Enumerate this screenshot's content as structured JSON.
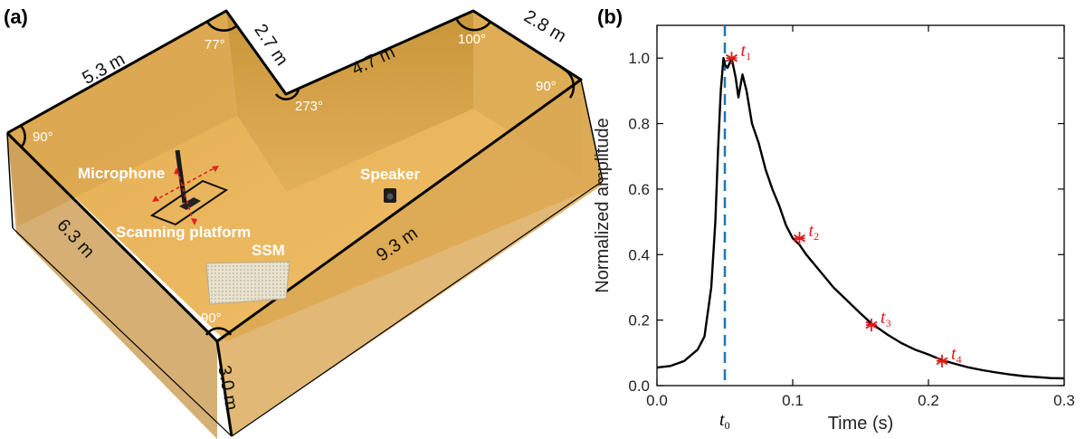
{
  "panel_a": {
    "label": "(a)",
    "dimensions": [
      "5.3 m",
      "2.7 m",
      "4.7 m",
      "2.8 m",
      "6.3 m",
      "9.3 m",
      "3.0 m"
    ],
    "angles": [
      "77°",
      "100°",
      "90°",
      "273°",
      "90°",
      "90°"
    ],
    "objects": {
      "microphone": "Microphone",
      "scanning_platform": "Scanning platform",
      "speaker": "Speaker",
      "ssm": "SSM"
    },
    "colors": {
      "wall": "#d7a64a",
      "floor": "#ecb85f",
      "edge": "#000000",
      "arrow": "#e02020"
    }
  },
  "panel_b": {
    "label": "(b)",
    "t0_label": "t",
    "t0_sub": "0",
    "marker_label": "t",
    "colors": {
      "curve": "#000000",
      "marker": "#e01b1b",
      "dashed": "#1f77b4"
    }
  },
  "chart_data": {
    "type": "line",
    "title": "",
    "xlabel": "Time (s)",
    "ylabel": "Normalized amplitude",
    "xlim": [
      0.0,
      0.3
    ],
    "ylim": [
      0.0,
      1.1
    ],
    "xticks": [
      0.0,
      0.1,
      0.2,
      0.3
    ],
    "xtick_labels": [
      "0.0",
      "0.1",
      "0.2",
      "0.3"
    ],
    "yticks": [
      0.0,
      0.2,
      0.4,
      0.6,
      0.8,
      1.0
    ],
    "ytick_labels": [
      "0.0",
      "0.2",
      "0.4",
      "0.6",
      "0.8",
      "1.0"
    ],
    "t0": 0.05,
    "grid": false,
    "series": [
      {
        "x": [
          0.0,
          0.01,
          0.02,
          0.03,
          0.035,
          0.04,
          0.043,
          0.045,
          0.047,
          0.049,
          0.05,
          0.052,
          0.055,
          0.058,
          0.06,
          0.063,
          0.066,
          0.07,
          0.075,
          0.08,
          0.085,
          0.09,
          0.095,
          0.1,
          0.105,
          0.11,
          0.12,
          0.13,
          0.14,
          0.15,
          0.158,
          0.17,
          0.18,
          0.19,
          0.2,
          0.21,
          0.22,
          0.23,
          0.24,
          0.25,
          0.26,
          0.27,
          0.28,
          0.29,
          0.3
        ],
        "y": [
          0.055,
          0.06,
          0.075,
          0.11,
          0.15,
          0.3,
          0.5,
          0.72,
          0.9,
          1.0,
          0.98,
          0.97,
          1.0,
          0.94,
          0.88,
          0.95,
          0.9,
          0.8,
          0.74,
          0.66,
          0.6,
          0.55,
          0.49,
          0.45,
          0.43,
          0.4,
          0.35,
          0.3,
          0.26,
          0.22,
          0.19,
          0.155,
          0.13,
          0.11,
          0.095,
          0.078,
          0.066,
          0.055,
          0.047,
          0.04,
          0.034,
          0.029,
          0.026,
          0.023,
          0.022
        ]
      }
    ],
    "markers": [
      {
        "label": "t",
        "sub": "1",
        "x": 0.055,
        "y": 1.0
      },
      {
        "label": "t",
        "sub": "2",
        "x": 0.105,
        "y": 0.45
      },
      {
        "label": "t",
        "sub": "3",
        "x": 0.158,
        "y": 0.185
      },
      {
        "label": "t",
        "sub": "4",
        "x": 0.21,
        "y": 0.075
      }
    ]
  }
}
